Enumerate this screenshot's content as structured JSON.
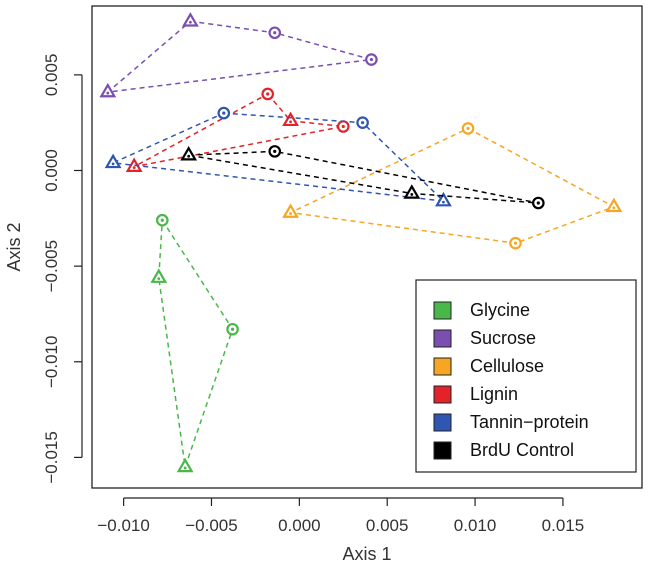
{
  "chart_data": {
    "type": "scatter",
    "title": "",
    "xlabel": "Axis 1",
    "ylabel": "Axis 2",
    "xlim": [
      -0.0118,
      0.0195
    ],
    "ylim": [
      -0.0166,
      0.0086
    ],
    "xticks": [
      -0.01,
      -0.005,
      0.0,
      0.005,
      0.01,
      0.015
    ],
    "xtick_labels": [
      "−0.010",
      "−0.005",
      "0.000",
      "0.005",
      "0.010",
      "0.015"
    ],
    "yticks": [
      0.005,
      0.0,
      -0.005,
      -0.01,
      -0.015
    ],
    "ytick_labels": [
      "0.005",
      "0.000",
      "−0.005",
      "−0.010",
      "−0.015"
    ],
    "grid": false,
    "legend_position": "bottom-right",
    "series": [
      {
        "name": "Glycine",
        "color": "#4ab74a",
        "points": [
          {
            "x": -0.0078,
            "y": -0.0026,
            "marker": "circle"
          },
          {
            "x": -0.0038,
            "y": -0.0083,
            "marker": "circle"
          },
          {
            "x": -0.0065,
            "y": -0.0155,
            "marker": "triangle"
          },
          {
            "x": -0.008,
            "y": -0.0056,
            "marker": "triangle"
          }
        ]
      },
      {
        "name": "Sucrose",
        "color": "#7a4fb0",
        "points": [
          {
            "x": -0.0062,
            "y": 0.0078,
            "marker": "triangle"
          },
          {
            "x": -0.0014,
            "y": 0.0072,
            "marker": "circle"
          },
          {
            "x": 0.0041,
            "y": 0.0058,
            "marker": "circle"
          },
          {
            "x": -0.0109,
            "y": 0.0041,
            "marker": "triangle"
          }
        ]
      },
      {
        "name": "Cellulose",
        "color": "#f6a623",
        "points": [
          {
            "x": 0.0096,
            "y": 0.0022,
            "marker": "circle"
          },
          {
            "x": 0.0179,
            "y": -0.0019,
            "marker": "triangle"
          },
          {
            "x": 0.0123,
            "y": -0.0038,
            "marker": "circle"
          },
          {
            "x": -0.0005,
            "y": -0.0022,
            "marker": "triangle"
          }
        ]
      },
      {
        "name": "Lignin",
        "color": "#e2232a",
        "points": [
          {
            "x": -0.0018,
            "y": 0.004,
            "marker": "circle"
          },
          {
            "x": -0.0005,
            "y": 0.0026,
            "marker": "triangle"
          },
          {
            "x": 0.0025,
            "y": 0.0023,
            "marker": "circle"
          },
          {
            "x": -0.0094,
            "y": 0.0002,
            "marker": "triangle"
          }
        ]
      },
      {
        "name": "Tannin−protein",
        "color": "#2f56b0",
        "points": [
          {
            "x": -0.0043,
            "y": 0.003,
            "marker": "circle"
          },
          {
            "x": 0.0036,
            "y": 0.0025,
            "marker": "circle"
          },
          {
            "x": 0.0082,
            "y": -0.0016,
            "marker": "triangle"
          },
          {
            "x": -0.0106,
            "y": 0.0004,
            "marker": "triangle"
          }
        ]
      },
      {
        "name": "BrdU Control",
        "color": "#000000",
        "points": [
          {
            "x": -0.0063,
            "y": 0.0008,
            "marker": "triangle"
          },
          {
            "x": -0.0014,
            "y": 0.001,
            "marker": "circle"
          },
          {
            "x": 0.0136,
            "y": -0.0017,
            "marker": "circle"
          },
          {
            "x": 0.0064,
            "y": -0.0012,
            "marker": "triangle"
          }
        ]
      }
    ]
  }
}
